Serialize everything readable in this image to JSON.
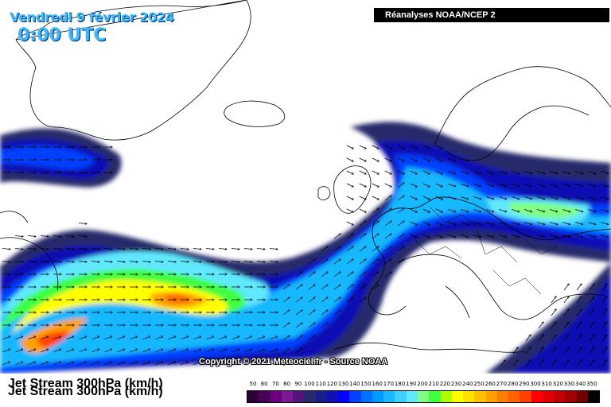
{
  "header": {
    "date": "Vendredi 9 février 2024",
    "time": "0:00 UTC",
    "source": "Réanalyses NOAA/NCEP 2"
  },
  "copyright": "Copyright © 2021 Meteociel.fr - Source NOAA",
  "product": {
    "title": "Jet Stream 300hPa (km/h)",
    "title_shadow": "Jet Stream 300hPa (km/h)"
  },
  "legend": {
    "labels": [
      "50",
      "60",
      "70",
      "80",
      "90",
      "100",
      "110",
      "120",
      "130",
      "140",
      "150",
      "160",
      "170",
      "180",
      "190",
      "200",
      "210",
      "220",
      "230",
      "240",
      "250",
      "260",
      "270",
      "280",
      "290",
      "300",
      "310",
      "320",
      "330",
      "340",
      "350"
    ],
    "colors": [
      "#2c0033",
      "#4a0055",
      "#6c0080",
      "#7a1a90",
      "#56117a",
      "#26296b",
      "#151e8a",
      "#1010b4",
      "#0000ff",
      "#0040ff",
      "#0070ff",
      "#0099ff",
      "#19b8ff",
      "#40d0ff",
      "#60e8ff",
      "#80ff80",
      "#40ff40",
      "#b0ff00",
      "#ffff00",
      "#ffe000",
      "#ffc000",
      "#ffa000",
      "#ff8000",
      "#ff6000",
      "#ff4000",
      "#ff0000",
      "#e00000",
      "#c00000",
      "#a00000",
      "#700000",
      "#000000"
    ]
  }
}
